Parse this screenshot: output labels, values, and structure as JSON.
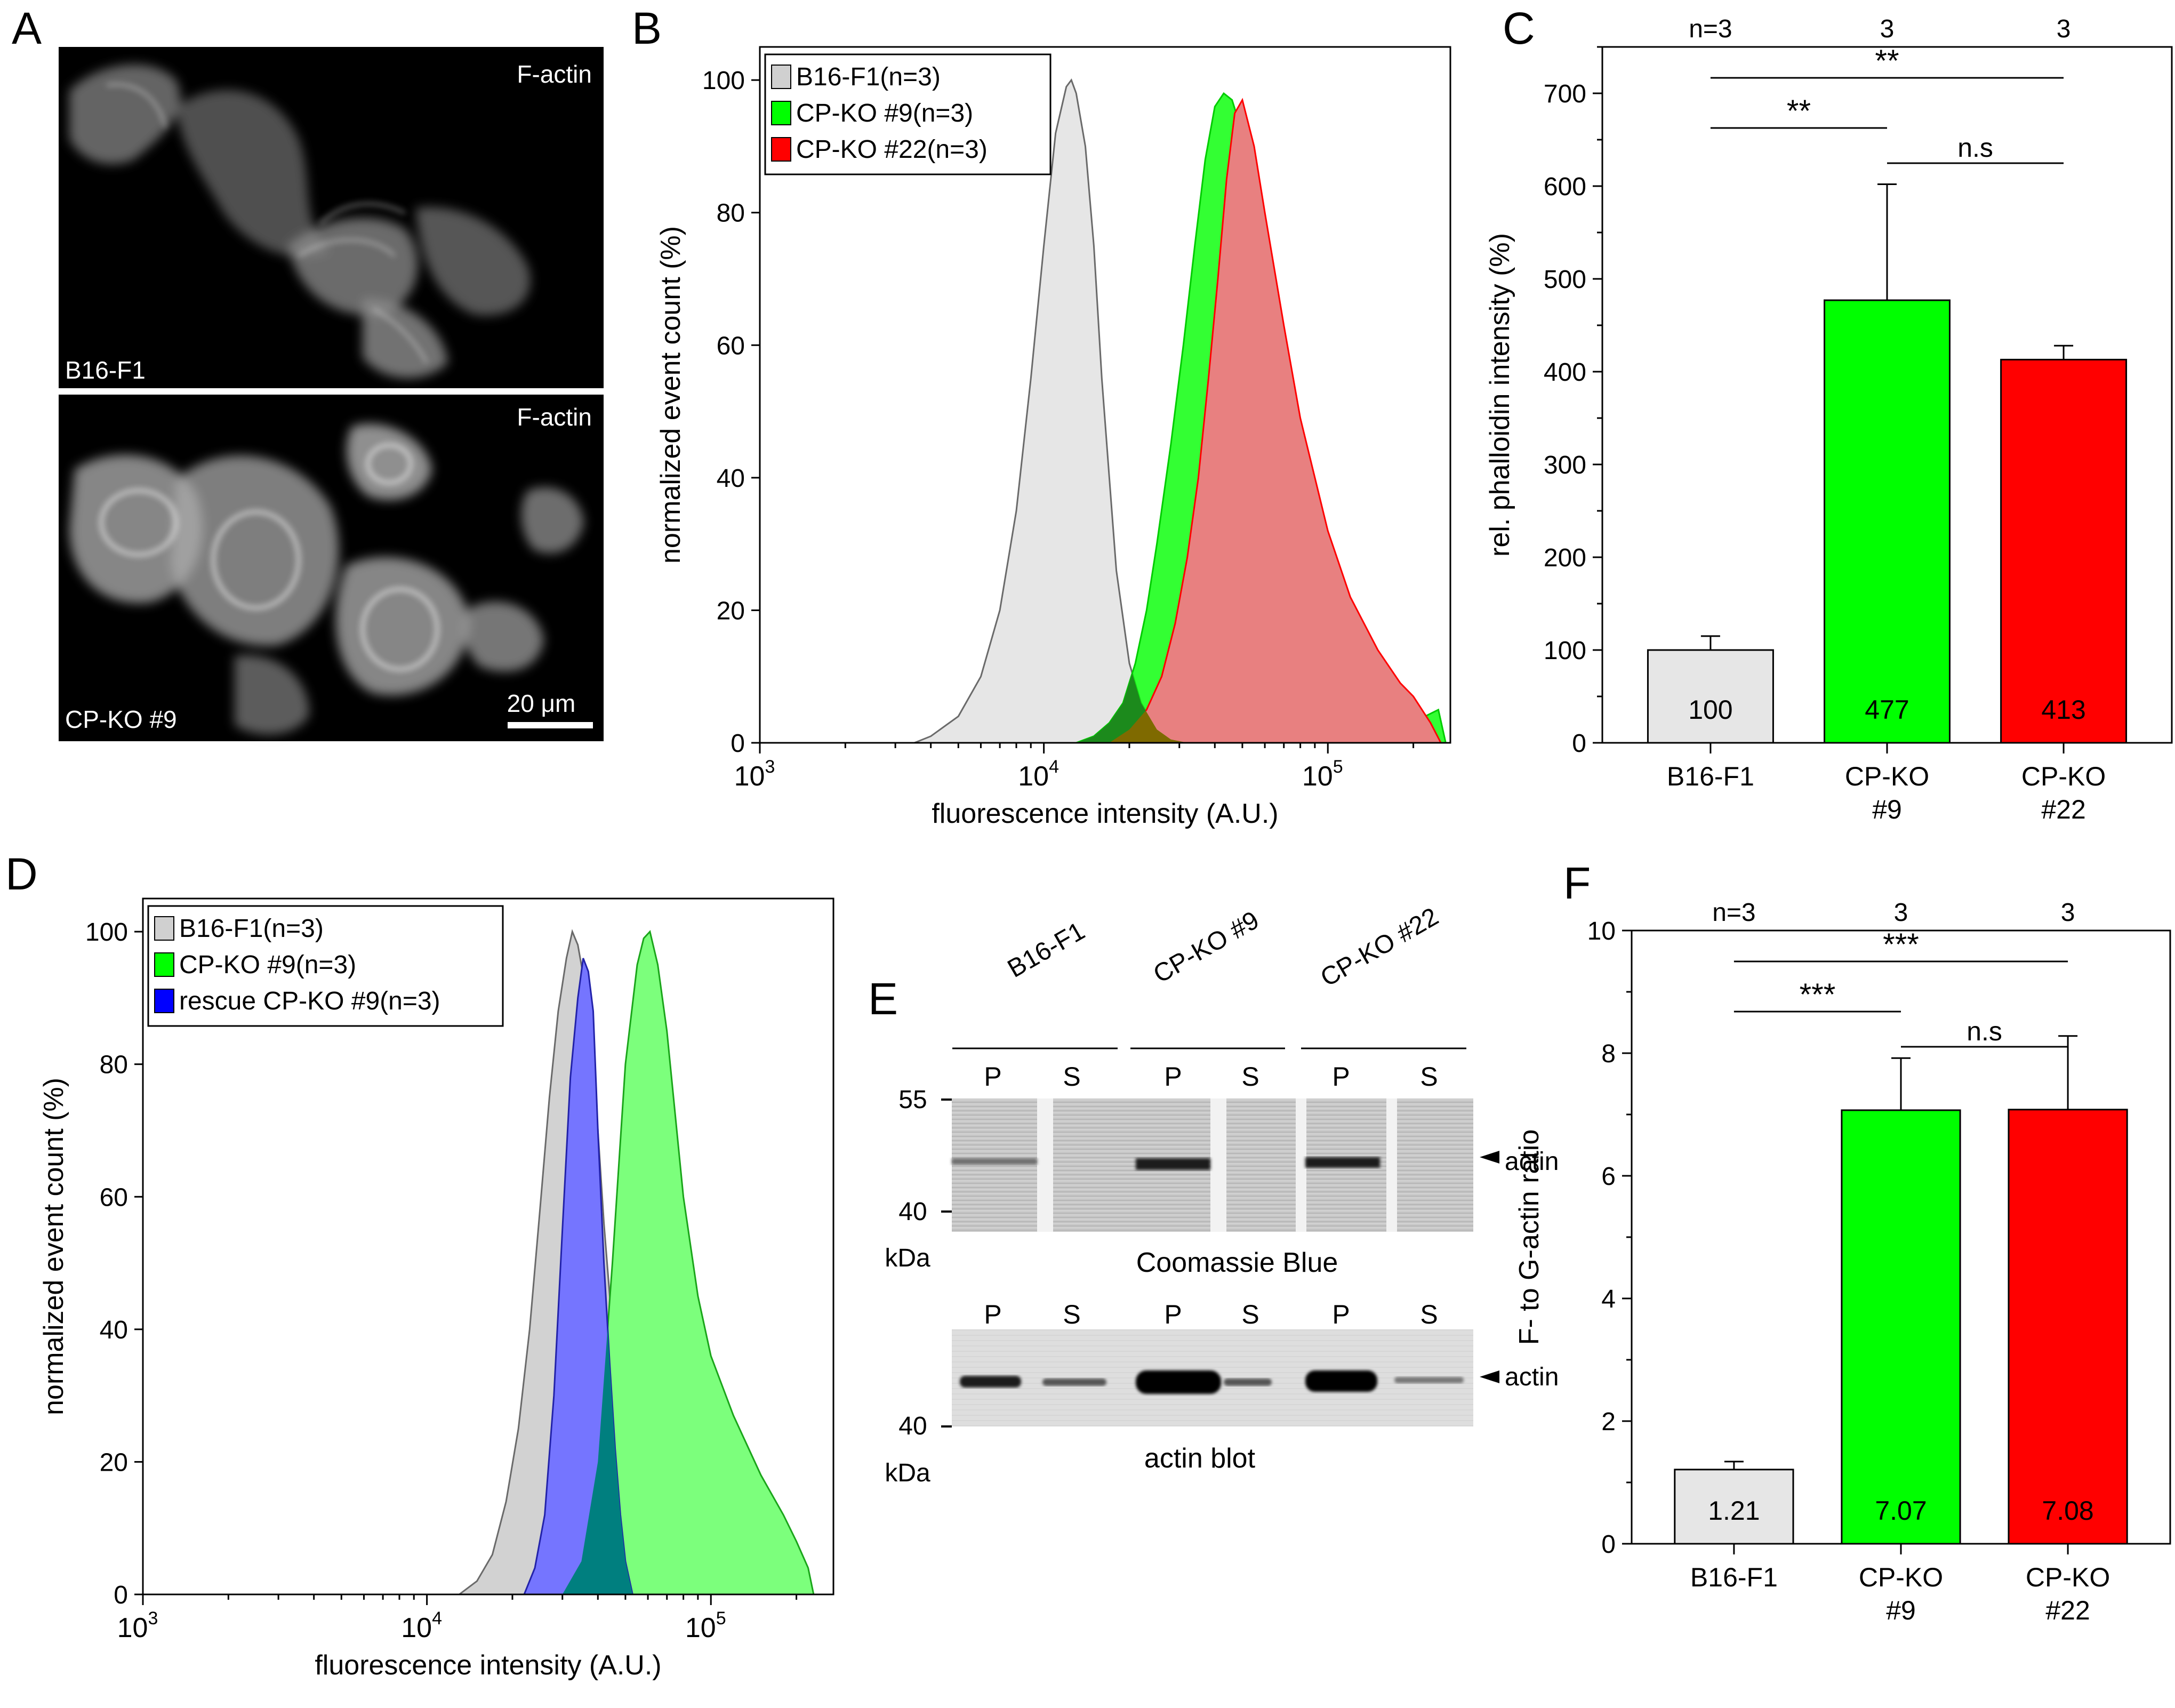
{
  "panels": {
    "a": {
      "letter": "A",
      "top_label": "F-actin",
      "top_cell": "B16-F1",
      "bottom_label": "F-actin",
      "bottom_cell": "CP-KO #9",
      "scale_bar": "20 μm"
    },
    "b": {
      "letter": "B"
    },
    "c": {
      "letter": "C"
    },
    "d": {
      "letter": "D"
    },
    "e": {
      "letter": "E",
      "groups": [
        "B16-F1",
        "CP-KO #9",
        "CP-KO #22"
      ],
      "lane_labels": [
        "P",
        "S",
        "P",
        "S",
        "P",
        "S"
      ],
      "coomassie_mw": [
        "55",
        "40"
      ],
      "blot_mw": [
        "40"
      ],
      "unit": "kDa",
      "band_label": "actin",
      "coomassie_caption": "Coomassie Blue",
      "blot_caption": "actin blot"
    },
    "f": {
      "letter": "F"
    }
  },
  "colors": {
    "b16": "#e6e6e6",
    "b16_d": "#d2d2d2",
    "ko9": "#00ff00",
    "ko9_d": "#7cff7c",
    "ko22": "#ff0000",
    "ko22_fill": "#e88080",
    "rescue": "#7575ff",
    "overlap_teal": "#007f7f",
    "overlap_olive": "#7f6a00"
  },
  "chart_data": [
    {
      "id": "B",
      "type": "area",
      "x_scale": "log",
      "xlim": [
        1000,
        270000
      ],
      "ylim": [
        0,
        105
      ],
      "xlabel": "fluorescence intensity (A.U.)",
      "ylabel": "normalized event count (%)",
      "xticks": [
        1000,
        10000,
        100000
      ],
      "xtick_labels": [
        {
          "base": "10",
          "exp": "3"
        },
        {
          "base": "10",
          "exp": "4"
        },
        {
          "base": "10",
          "exp": "5"
        }
      ],
      "yticks": [
        0,
        20,
        40,
        60,
        80,
        100
      ],
      "legend": [
        "B16-F1(n=3)",
        "CP-KO #9(n=3)",
        "CP-KO #22(n=3)"
      ],
      "legend_position": "top-left",
      "series": [
        {
          "name": "B16-F1(n=3)",
          "color_key": "b16",
          "x": [
            3500,
            4000,
            5000,
            6000,
            7000,
            8000,
            9000,
            10000,
            11000,
            12000,
            12500,
            13000,
            14000,
            15000,
            16000,
            17000,
            18000,
            20000,
            22000,
            25000,
            28000,
            32000
          ],
          "y": [
            0,
            1,
            4,
            10,
            20,
            35,
            55,
            75,
            92,
            99,
            100,
            98,
            90,
            75,
            55,
            40,
            26,
            12,
            6,
            2,
            0.5,
            0
          ]
        },
        {
          "name": "CP-KO #9(n=3)",
          "color_key": "ko9",
          "x": [
            13000,
            15000,
            17000,
            19000,
            21000,
            23000,
            25000,
            28000,
            31000,
            34000,
            37000,
            40000,
            43000,
            46000,
            50000,
            55000,
            60000,
            70000,
            80000,
            100000,
            120000,
            150000,
            180000,
            220000,
            245000,
            260000
          ],
          "y": [
            0,
            1,
            3,
            6,
            12,
            20,
            30,
            45,
            60,
            75,
            88,
            96,
            98,
            97,
            92,
            80,
            68,
            50,
            37,
            24,
            16,
            10,
            6,
            4,
            5,
            0
          ]
        },
        {
          "name": "CP-KO #22(n=3)",
          "color_key": "ko22",
          "x": [
            17000,
            20000,
            23000,
            26000,
            29000,
            32000,
            35000,
            38000,
            41000,
            44000,
            47000,
            50000,
            55000,
            60000,
            70000,
            80000,
            100000,
            120000,
            150000,
            180000,
            200000,
            230000,
            250000
          ],
          "y": [
            0,
            2,
            5,
            10,
            18,
            28,
            40,
            55,
            70,
            85,
            95,
            97,
            90,
            80,
            63,
            49,
            32,
            22,
            14,
            9,
            7,
            3,
            0
          ]
        }
      ]
    },
    {
      "id": "C",
      "type": "bar",
      "categories": [
        "B16-F1",
        "CP-KO\n#9",
        "CP-KO\n#22"
      ],
      "category_lines": [
        [
          "B16-F1"
        ],
        [
          "CP-KO",
          "#9"
        ],
        [
          "CP-KO",
          "#22"
        ]
      ],
      "values": [
        100,
        477,
        413
      ],
      "value_labels": [
        "100",
        "477",
        "413"
      ],
      "errors": [
        15,
        125,
        15
      ],
      "ylabel": "rel. phalloidin intensity (%)",
      "ylim": [
        0,
        750
      ],
      "yticks": [
        0,
        100,
        200,
        300,
        400,
        500,
        600,
        700
      ],
      "n_labels": [
        "n=3",
        "3",
        "3"
      ],
      "significance": [
        {
          "a": 0,
          "b": 2,
          "label": "**"
        },
        {
          "a": 0,
          "b": 1,
          "label": "**"
        },
        {
          "a": 1,
          "b": 2,
          "label": "n.s"
        }
      ]
    },
    {
      "id": "D",
      "type": "area",
      "x_scale": "log",
      "xlim": [
        1000,
        270000
      ],
      "ylim": [
        0,
        105
      ],
      "xlabel": "fluorescence intensity (A.U.)",
      "ylabel": "normalized event count (%)",
      "xticks": [
        1000,
        10000,
        100000
      ],
      "xtick_labels": [
        {
          "base": "10",
          "exp": "3"
        },
        {
          "base": "10",
          "exp": "4"
        },
        {
          "base": "10",
          "exp": "5"
        }
      ],
      "yticks": [
        0,
        20,
        40,
        60,
        80,
        100
      ],
      "legend": [
        "B16-F1(n=3)",
        "CP-KO #9(n=3)",
        "rescue CP-KO #9(n=3)"
      ],
      "legend_position": "top-left",
      "series": [
        {
          "name": "B16-F1(n=3)",
          "color_key": "b16_d",
          "x": [
            13000,
            15000,
            17000,
            19000,
            21000,
            23000,
            25000,
            27000,
            29000,
            31000,
            32500,
            34000,
            36000,
            38000,
            40000,
            42000,
            45000,
            48000,
            52000,
            57000,
            62000,
            70000,
            80000,
            90000
          ],
          "y": [
            0,
            2,
            6,
            14,
            25,
            40,
            58,
            75,
            88,
            96,
            100,
            98,
            92,
            82,
            70,
            56,
            40,
            26,
            16,
            9,
            5,
            3,
            1,
            0
          ]
        },
        {
          "name": "CP-KO #9(n=3)",
          "color_key": "ko9_d",
          "x": [
            30000,
            35000,
            40000,
            45000,
            50000,
            55000,
            58000,
            61000,
            65000,
            70000,
            80000,
            90000,
            100000,
            120000,
            150000,
            180000,
            200000,
            220000,
            230000
          ],
          "y": [
            0,
            5,
            20,
            50,
            80,
            95,
            99,
            100,
            95,
            85,
            60,
            45,
            36,
            27,
            18,
            12,
            8,
            4,
            0
          ]
        },
        {
          "name": "rescue CP-KO #9(n=3)",
          "color_key": "rescue",
          "x": [
            22000,
            24000,
            26000,
            28000,
            30000,
            32000,
            34000,
            35500,
            37000,
            38500,
            40000,
            42000,
            44000,
            46000,
            48000,
            50000,
            53000
          ],
          "y": [
            0,
            4,
            12,
            30,
            55,
            78,
            90,
            96,
            94,
            88,
            70,
            50,
            35,
            22,
            12,
            5,
            0
          ]
        }
      ]
    },
    {
      "id": "F",
      "type": "bar",
      "categories": [
        "B16-F1",
        "CP-KO\n#9",
        "CP-KO\n#22"
      ],
      "category_lines": [
        [
          "B16-F1"
        ],
        [
          "CP-KO",
          "#9"
        ],
        [
          "CP-KO",
          "#22"
        ]
      ],
      "values": [
        1.21,
        7.07,
        7.08
      ],
      "value_labels": [
        "1.21",
        "7.07",
        "7.08"
      ],
      "errors": [
        0.13,
        0.85,
        1.2
      ],
      "ylabel": "F- to G-actin ratio",
      "ylim": [
        0,
        10
      ],
      "yticks": [
        0,
        2,
        4,
        6,
        8,
        10
      ],
      "n_labels": [
        "n=3",
        "3",
        "3"
      ],
      "significance": [
        {
          "a": 0,
          "b": 2,
          "label": "***"
        },
        {
          "a": 0,
          "b": 1,
          "label": "***"
        },
        {
          "a": 1,
          "b": 2,
          "label": "n.s"
        }
      ]
    }
  ]
}
